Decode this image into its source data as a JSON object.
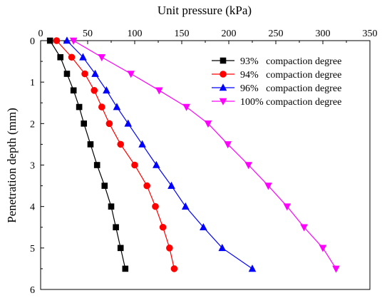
{
  "chart_data": {
    "type": "line",
    "xlabel": "Unit pressure  (kPa)",
    "ylabel": "Penetration depth (mm)",
    "xlim": [
      0,
      350
    ],
    "ylim": [
      0,
      6
    ],
    "x_axis_position": "top",
    "y_axis_inverted": true,
    "grid": false,
    "legend_position": "top-right",
    "xticks": [
      0,
      50,
      100,
      150,
      200,
      250,
      300,
      350
    ],
    "yticks": [
      0,
      1,
      2,
      3,
      4,
      5,
      6
    ],
    "series": [
      {
        "name": "93%   compaction degree",
        "marker": "square",
        "color": "#000000",
        "points": [
          {
            "x": 10,
            "y": 0
          },
          {
            "x": 21,
            "y": 0.4
          },
          {
            "x": 28,
            "y": 0.8
          },
          {
            "x": 35,
            "y": 1.2
          },
          {
            "x": 41,
            "y": 1.6
          },
          {
            "x": 46,
            "y": 2.0
          },
          {
            "x": 53,
            "y": 2.5
          },
          {
            "x": 60,
            "y": 3.0
          },
          {
            "x": 68,
            "y": 3.5
          },
          {
            "x": 75,
            "y": 4.0
          },
          {
            "x": 80,
            "y": 4.5
          },
          {
            "x": 85,
            "y": 5.0
          },
          {
            "x": 90,
            "y": 5.5
          }
        ]
      },
      {
        "name": "94%   compaction degree",
        "marker": "circle",
        "color": "#ff0000",
        "points": [
          {
            "x": 17,
            "y": 0
          },
          {
            "x": 33,
            "y": 0.4
          },
          {
            "x": 47,
            "y": 0.8
          },
          {
            "x": 57,
            "y": 1.2
          },
          {
            "x": 65,
            "y": 1.6
          },
          {
            "x": 73,
            "y": 2.0
          },
          {
            "x": 85,
            "y": 2.5
          },
          {
            "x": 100,
            "y": 3.0
          },
          {
            "x": 113,
            "y": 3.5
          },
          {
            "x": 122,
            "y": 4.0
          },
          {
            "x": 130,
            "y": 4.5
          },
          {
            "x": 137,
            "y": 5.0
          },
          {
            "x": 142,
            "y": 5.5
          }
        ]
      },
      {
        "name": "96%   compaction degree",
        "marker": "triangle-up",
        "color": "#0000ff",
        "points": [
          {
            "x": 28,
            "y": 0
          },
          {
            "x": 45,
            "y": 0.4
          },
          {
            "x": 58,
            "y": 0.8
          },
          {
            "x": 70,
            "y": 1.2
          },
          {
            "x": 81,
            "y": 1.6
          },
          {
            "x": 93,
            "y": 2.0
          },
          {
            "x": 108,
            "y": 2.5
          },
          {
            "x": 123,
            "y": 3.0
          },
          {
            "x": 139,
            "y": 3.5
          },
          {
            "x": 154,
            "y": 4.0
          },
          {
            "x": 173,
            "y": 4.5
          },
          {
            "x": 193,
            "y": 5.0
          },
          {
            "x": 225,
            "y": 5.5
          }
        ]
      },
      {
        "name": "100% compaction degree",
        "marker": "triangle-down",
        "color": "#ff00ff",
        "points": [
          {
            "x": 35,
            "y": 0
          },
          {
            "x": 65,
            "y": 0.4
          },
          {
            "x": 96,
            "y": 0.8
          },
          {
            "x": 126,
            "y": 1.2
          },
          {
            "x": 155,
            "y": 1.6
          },
          {
            "x": 178,
            "y": 2.0
          },
          {
            "x": 199,
            "y": 2.5
          },
          {
            "x": 221,
            "y": 3.0
          },
          {
            "x": 242,
            "y": 3.5
          },
          {
            "x": 262,
            "y": 4.0
          },
          {
            "x": 280,
            "y": 4.5
          },
          {
            "x": 300,
            "y": 5.0
          },
          {
            "x": 314,
            "y": 5.5
          }
        ]
      }
    ]
  }
}
